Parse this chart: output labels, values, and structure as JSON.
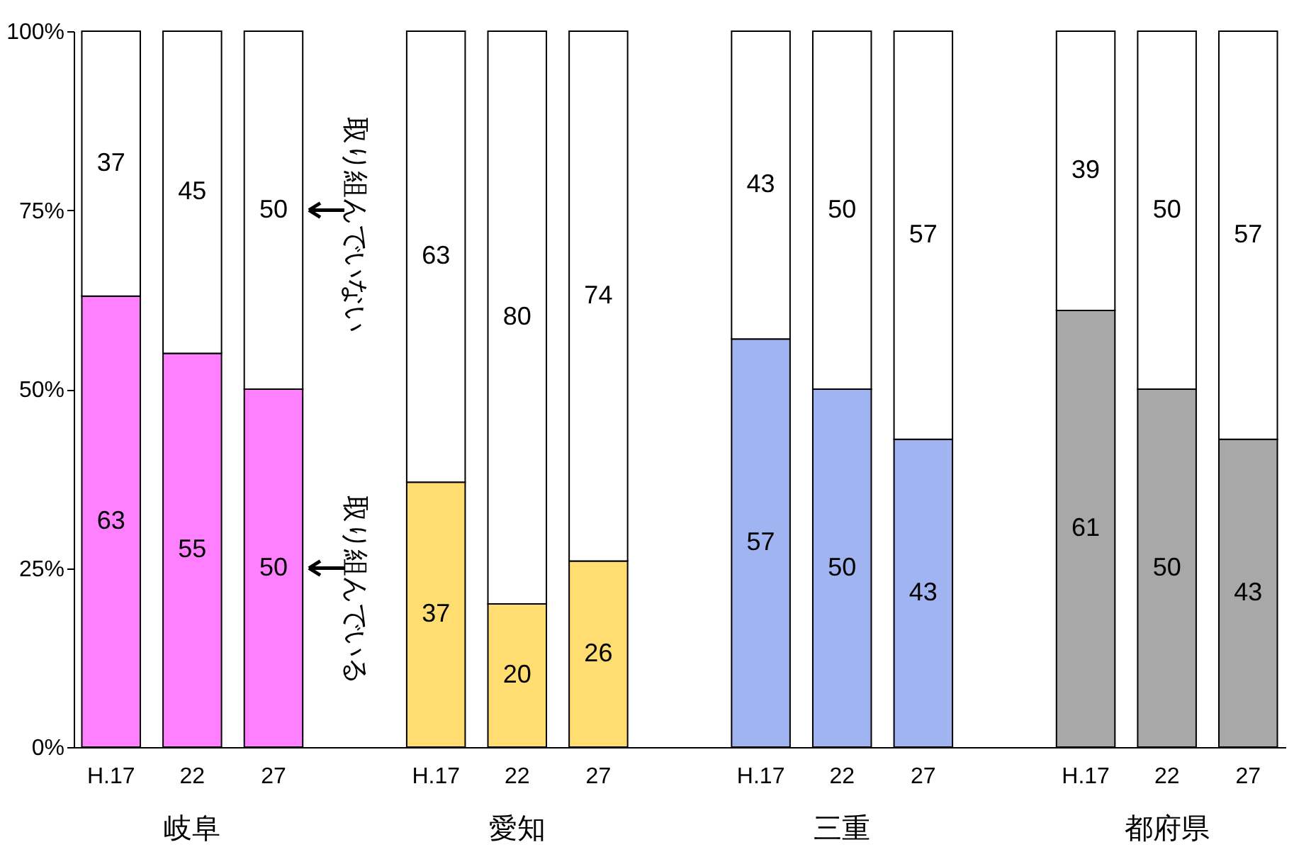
{
  "chart_data": {
    "type": "bar",
    "stacked": true,
    "data_labels": true,
    "categories": [
      "H.17",
      "22",
      "27",
      null,
      "H.17",
      "22",
      "27",
      null,
      "H.17",
      "22",
      "27",
      null,
      "H.17",
      "22",
      "27"
    ],
    "series": [
      {
        "values": [
          63,
          55,
          50,
          null,
          37,
          20,
          26,
          null,
          57,
          50,
          43,
          null,
          61,
          50,
          43
        ],
        "colors": [
          "#ff80ff",
          "#ff80ff",
          "#ff80ff",
          null,
          "#ffdd70",
          "#ffdd70",
          "#ffdd70",
          null,
          "#9fb4f0",
          "#9fb4f0",
          "#9fb4f0",
          null,
          "#a8a8a8",
          "#a8a8a8",
          "#a8a8a8"
        ]
      },
      {
        "values": [
          37,
          45,
          50,
          null,
          63,
          80,
          74,
          null,
          43,
          50,
          57,
          null,
          39,
          50,
          57
        ],
        "color": "#ffffff"
      }
    ],
    "ylim": [
      0,
      100
    ],
    "yticks": [
      {
        "value": 0,
        "label": "0%"
      },
      {
        "value": 25,
        "label": "25%"
      },
      {
        "value": 50,
        "label": "50%"
      },
      {
        "value": 75,
        "label": "75%"
      },
      {
        "value": 100,
        "label": "100%"
      }
    ],
    "grid": false,
    "annotations": [
      "岐阜",
      "愛知",
      "三重",
      "都府県",
      "取り組んでいない",
      "取り組んでいる"
    ]
  }
}
